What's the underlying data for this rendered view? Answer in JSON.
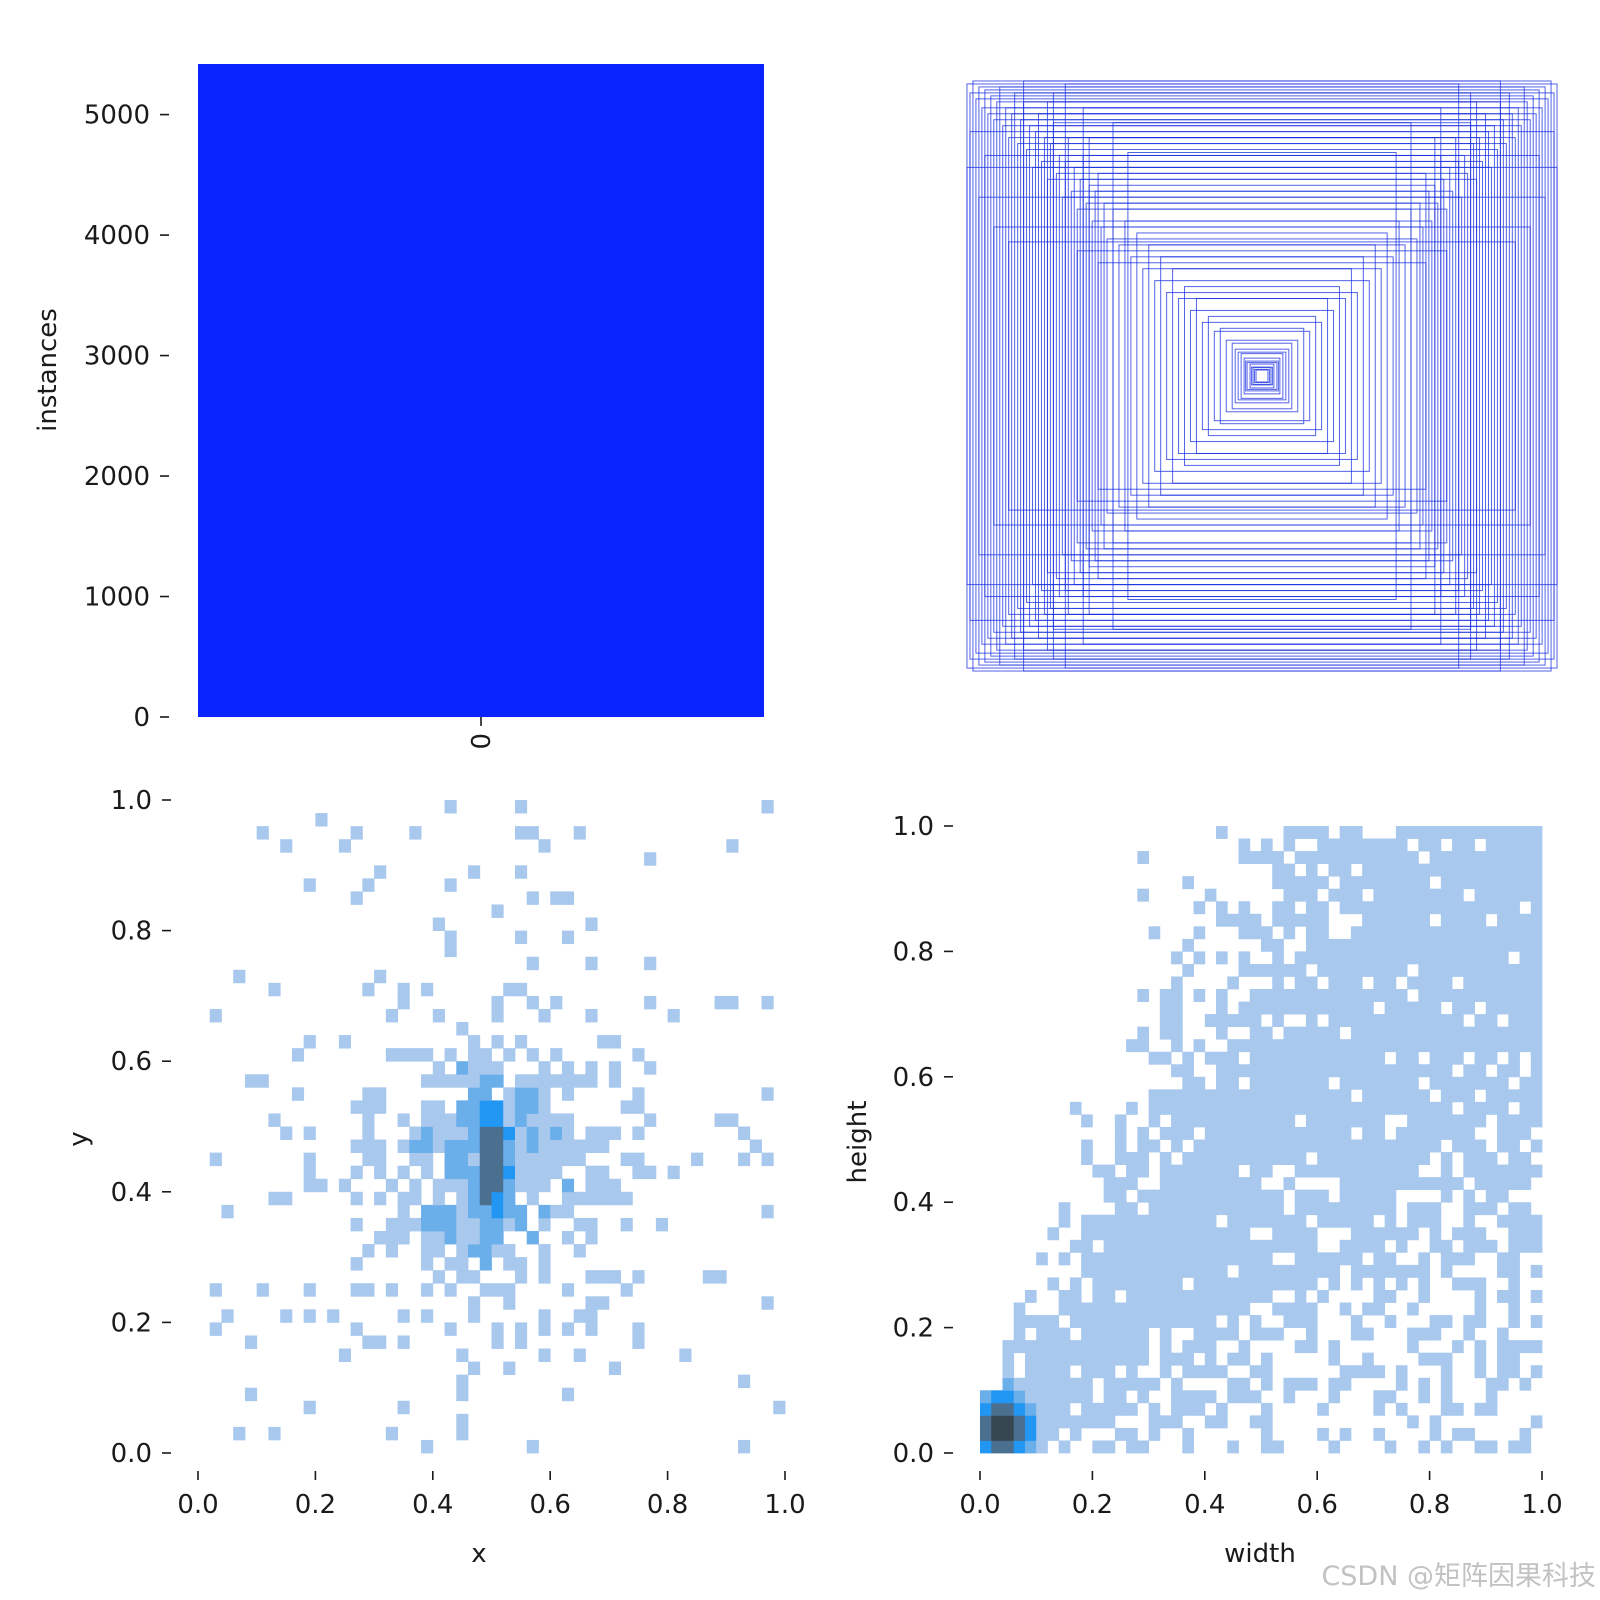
{
  "chart_data": [
    {
      "type": "bar",
      "categories": [
        "0"
      ],
      "values": [
        5420
      ],
      "ylabel": "instances",
      "xlabel": "",
      "ylim": [
        0,
        5420
      ],
      "yticks": [
        0,
        1000,
        2000,
        3000,
        4000,
        5000
      ],
      "color": "#0a24ff",
      "grid": false
    },
    {
      "type": "boxes",
      "description_visible": false,
      "box_color": "#1a2fe0",
      "boxes_whwh": [
        [
          0.99,
          0.98
        ],
        [
          0.98,
          0.95
        ],
        [
          0.97,
          0.99
        ],
        [
          0.96,
          0.93
        ],
        [
          0.95,
          0.97
        ],
        [
          0.94,
          0.9
        ],
        [
          0.93,
          0.96
        ],
        [
          0.92,
          0.88
        ],
        [
          0.91,
          0.94
        ],
        [
          0.9,
          0.86
        ],
        [
          0.89,
          0.92
        ],
        [
          0.88,
          0.97
        ],
        [
          0.87,
          0.84
        ],
        [
          0.86,
          0.9
        ],
        [
          0.85,
          0.8
        ],
        [
          0.84,
          0.88
        ],
        [
          0.83,
          0.95
        ],
        [
          0.82,
          0.78
        ],
        [
          0.81,
          0.86
        ],
        [
          0.8,
          0.92
        ],
        [
          0.79,
          0.76
        ],
        [
          0.78,
          0.84
        ],
        [
          0.77,
          0.7
        ],
        [
          0.76,
          0.82
        ],
        [
          0.75,
          0.88
        ],
        [
          0.74,
          0.72
        ],
        [
          0.73,
          0.8
        ],
        [
          0.72,
          0.66
        ],
        [
          0.71,
          0.78
        ],
        [
          0.7,
          0.85
        ],
        [
          0.69,
          0.68
        ],
        [
          0.68,
          0.74
        ],
        [
          0.67,
          0.6
        ],
        [
          0.66,
          0.72
        ],
        [
          0.65,
          0.8
        ],
        [
          0.64,
          0.62
        ],
        [
          0.63,
          0.7
        ],
        [
          0.62,
          0.56
        ],
        [
          0.61,
          0.66
        ],
        [
          0.6,
          0.74
        ],
        [
          0.59,
          0.58
        ],
        [
          0.58,
          0.64
        ],
        [
          0.57,
          0.52
        ],
        [
          0.56,
          0.62
        ],
        [
          0.55,
          0.68
        ],
        [
          0.54,
          0.5
        ],
        [
          0.53,
          0.58
        ],
        [
          0.52,
          0.46
        ],
        [
          0.5,
          0.56
        ],
        [
          0.48,
          0.44
        ],
        [
          0.46,
          0.52
        ],
        [
          0.44,
          0.4
        ],
        [
          0.42,
          0.48
        ],
        [
          0.4,
          0.36
        ],
        [
          0.38,
          0.44
        ],
        [
          0.36,
          0.32
        ],
        [
          0.34,
          0.4
        ],
        [
          0.32,
          0.28
        ],
        [
          0.3,
          0.36
        ],
        [
          0.28,
          0.26
        ],
        [
          0.26,
          0.3
        ],
        [
          0.24,
          0.22
        ],
        [
          0.22,
          0.26
        ],
        [
          0.2,
          0.18
        ],
        [
          0.18,
          0.2
        ],
        [
          0.16,
          0.15
        ],
        [
          0.14,
          0.16
        ],
        [
          0.12,
          0.12
        ],
        [
          0.1,
          0.11
        ],
        [
          0.09,
          0.09
        ],
        [
          0.08,
          0.08
        ],
        [
          0.07,
          0.075
        ],
        [
          0.06,
          0.06
        ],
        [
          0.055,
          0.05
        ],
        [
          0.05,
          0.045
        ],
        [
          0.04,
          0.04
        ],
        [
          0.035,
          0.03
        ],
        [
          0.03,
          0.028
        ],
        [
          0.025,
          0.022
        ],
        [
          0.02,
          0.02
        ],
        [
          0.99,
          0.7
        ],
        [
          0.95,
          0.6
        ],
        [
          0.9,
          0.5
        ],
        [
          0.85,
          0.45
        ],
        [
          0.7,
          0.95
        ],
        [
          0.6,
          0.9
        ],
        [
          0.5,
          0.85
        ],
        [
          0.45,
          0.75
        ],
        [
          0.98,
          0.82
        ],
        [
          0.93,
          0.74
        ],
        [
          0.8,
          0.99
        ],
        [
          0.72,
          0.92
        ],
        [
          0.66,
          0.98
        ],
        [
          0.58,
          0.8
        ],
        [
          0.62,
          0.42
        ],
        [
          0.55,
          0.38
        ]
      ]
    },
    {
      "type": "heatmap",
      "xlabel": "x",
      "ylabel": "y",
      "xlim": [
        0,
        1
      ],
      "ylim": [
        0,
        1
      ],
      "xticks": [
        "0.0",
        "0.2",
        "0.4",
        "0.6",
        "0.8",
        "1.0"
      ],
      "yticks": [
        "0.0",
        "0.2",
        "0.4",
        "0.6",
        "0.8",
        "1.0"
      ],
      "bins": 50,
      "distribution": {
        "center_x": 0.5,
        "center_y": 0.45,
        "spread_x": 0.13,
        "spread_y": 0.13,
        "peak_sigma_x": 0.012,
        "peak_sigma_y": 0.05
      },
      "colors": {
        "low": "#a8c8ee",
        "mid": "#2196f3",
        "high": "#37474f"
      }
    },
    {
      "type": "heatmap",
      "xlabel": "width",
      "ylabel": "height",
      "xlim": [
        0,
        1
      ],
      "ylim": [
        0,
        1
      ],
      "xticks": [
        "0.0",
        "0.2",
        "0.4",
        "0.6",
        "0.8",
        "1.0"
      ],
      "yticks": [
        "0.0",
        "0.2",
        "0.4",
        "0.6",
        "0.8",
        "1.0"
      ],
      "bins": 50,
      "distribution": {
        "relation": "height ≈ width",
        "peak_at": [
          0.04,
          0.04
        ]
      },
      "colors": {
        "low": "#a8c8ee",
        "mid": "#2196f3",
        "high": "#37474f"
      }
    }
  ],
  "watermark": "CSDN @矩阵因果科技"
}
